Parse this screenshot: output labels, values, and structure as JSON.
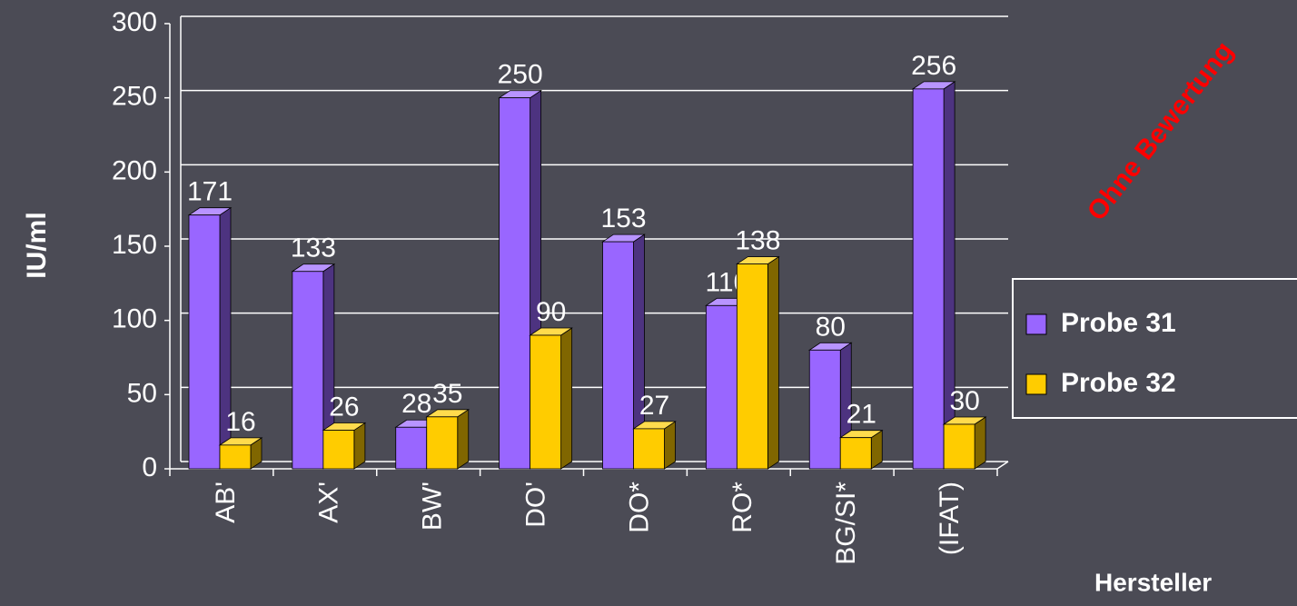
{
  "chart_data": {
    "type": "bar",
    "y_label": "IU/ml",
    "x_label": "Hersteller",
    "annotation": "Ohne Bewertung",
    "categories": [
      "AB'",
      "AX'",
      "BW'",
      "DO'",
      "DO*",
      "RO*",
      "BG/SI*",
      "(IFAT)"
    ],
    "series": [
      {
        "name": "Probe 31",
        "color": "#9966ff",
        "values": [
          171,
          133,
          28,
          250,
          153,
          110,
          80,
          256
        ]
      },
      {
        "name": "Probe 32",
        "color": "#ffcc00",
        "values": [
          16,
          26,
          35,
          90,
          27,
          138,
          21,
          30
        ]
      }
    ],
    "ylim": [
      0,
      300
    ],
    "yticks": [
      0,
      50,
      100,
      150,
      200,
      250,
      300
    ],
    "grid": true,
    "legend": "right"
  }
}
